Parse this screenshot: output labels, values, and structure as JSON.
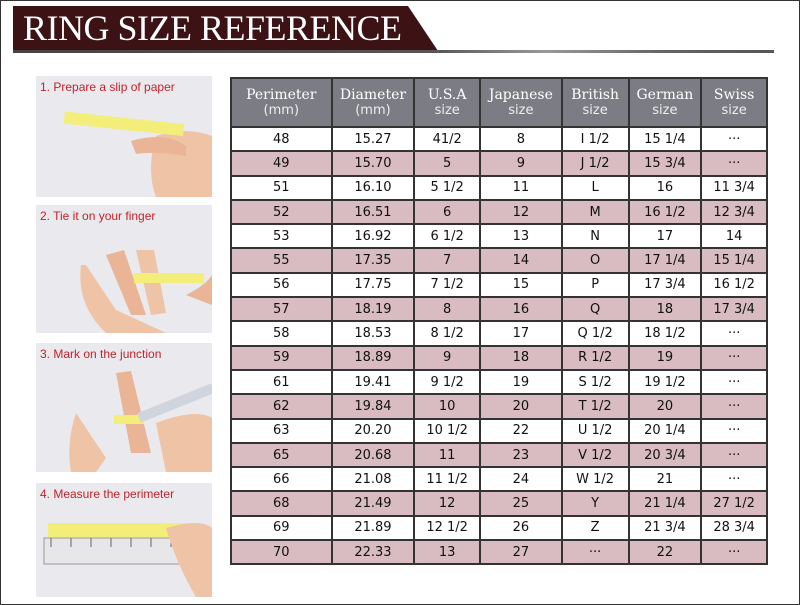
{
  "title": "RING SIZE REFERENCE",
  "steps": [
    {
      "label": "1. Prepare a slip of paper"
    },
    {
      "label": "2. Tie it on your finger"
    },
    {
      "label": "3. Mark on the junction"
    },
    {
      "label": "4. Measure the perimeter"
    }
  ],
  "colors": {
    "title_band": "#3d1214",
    "header_bg": "#7c7c84",
    "row_pink": "#d8bcc1",
    "step_label": "#c0242a"
  },
  "table": {
    "headers": [
      {
        "main": "Perimeter",
        "sub": "(mm)"
      },
      {
        "main": "Diameter",
        "sub": "(mm)"
      },
      {
        "main": "U.S.A",
        "sub": "size"
      },
      {
        "main": "Japanese",
        "sub": "size"
      },
      {
        "main": "British",
        "sub": "size"
      },
      {
        "main": "German",
        "sub": "size"
      },
      {
        "main": "Swiss",
        "sub": "size"
      }
    ],
    "rows": [
      [
        "48",
        "15.27",
        "41/2",
        "8",
        "I 1/2",
        "15 1/4",
        "···"
      ],
      [
        "49",
        "15.70",
        "5",
        "9",
        "J 1/2",
        "15 3/4",
        "···"
      ],
      [
        "51",
        "16.10",
        "5 1/2",
        "11",
        "L",
        "16",
        "11 3/4"
      ],
      [
        "52",
        "16.51",
        "6",
        "12",
        "M",
        "16 1/2",
        "12 3/4"
      ],
      [
        "53",
        "16.92",
        "6 1/2",
        "13",
        "N",
        "17",
        "14"
      ],
      [
        "55",
        "17.35",
        "7",
        "14",
        "O",
        "17 1/4",
        "15 1/4"
      ],
      [
        "56",
        "17.75",
        "7 1/2",
        "15",
        "P",
        "17 3/4",
        "16 1/2"
      ],
      [
        "57",
        "18.19",
        "8",
        "16",
        "Q",
        "18",
        "17 3/4"
      ],
      [
        "58",
        "18.53",
        "8 1/2",
        "17",
        "Q  1/2",
        "18 1/2",
        "···"
      ],
      [
        "59",
        "18.89",
        "9",
        "18",
        "R 1/2",
        "19",
        "···"
      ],
      [
        "61",
        "19.41",
        "9 1/2",
        "19",
        "S 1/2",
        "19 1/2",
        "···"
      ],
      [
        "62",
        "19.84",
        "10",
        "20",
        "T 1/2",
        "20",
        "···"
      ],
      [
        "63",
        "20.20",
        "10 1/2",
        "22",
        "U 1/2",
        "20 1/4",
        "···"
      ],
      [
        "65",
        "20.68",
        "11",
        "23",
        "V 1/2",
        "20 3/4",
        "···"
      ],
      [
        "66",
        "21.08",
        "11 1/2",
        "24",
        "W 1/2",
        "21",
        "···"
      ],
      [
        "68",
        "21.49",
        "12",
        "25",
        "Y",
        "21 1/4",
        "27 1/2"
      ],
      [
        "69",
        "21.89",
        "12 1/2",
        "26",
        "Z",
        "21 3/4",
        "28 3/4"
      ],
      [
        "70",
        "22.33",
        "13",
        "27",
        "···",
        "22",
        "···"
      ]
    ]
  }
}
